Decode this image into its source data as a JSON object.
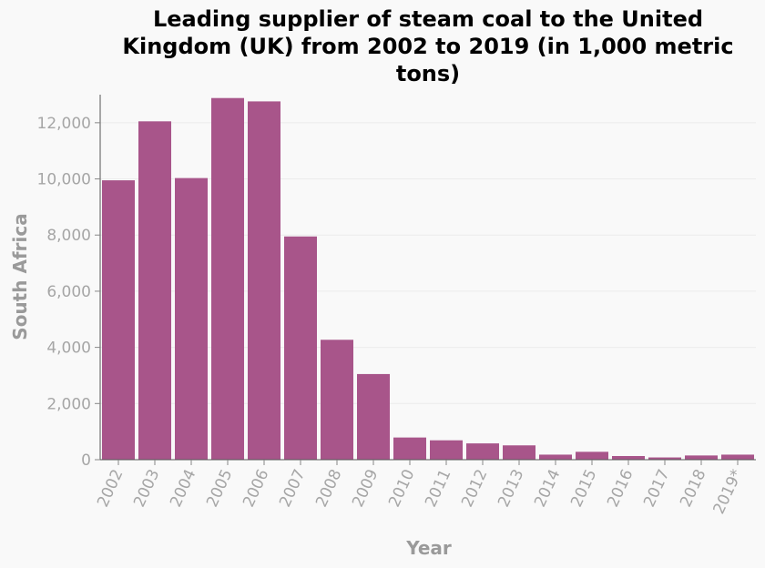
{
  "chart_data": {
    "type": "bar",
    "title": "Leading supplier of steam coal to the United Kingdom (UK) from 2002 to 2019 (in 1,000 metric tons)",
    "xlabel": "Year",
    "ylabel": "South Africa",
    "categories": [
      "2002",
      "2003",
      "2004",
      "2005",
      "2006",
      "2007",
      "2008",
      "2009",
      "2010",
      "2011",
      "2012",
      "2013",
      "2014",
      "2015",
      "2016",
      "2017",
      "2018",
      "2019*"
    ],
    "values": [
      9950,
      12050,
      10030,
      12880,
      12760,
      7950,
      4270,
      3050,
      790,
      690,
      580,
      510,
      180,
      280,
      130,
      80,
      150,
      180
    ],
    "ylim": [
      0,
      13000
    ],
    "yticks": [
      0,
      2000,
      4000,
      6000,
      8000,
      10000,
      12000
    ],
    "ytick_labels": [
      "0",
      "2,000",
      "4,000",
      "6,000",
      "8,000",
      "10,000",
      "12,000"
    ],
    "grid": true,
    "bar_color": "#a8558a"
  }
}
